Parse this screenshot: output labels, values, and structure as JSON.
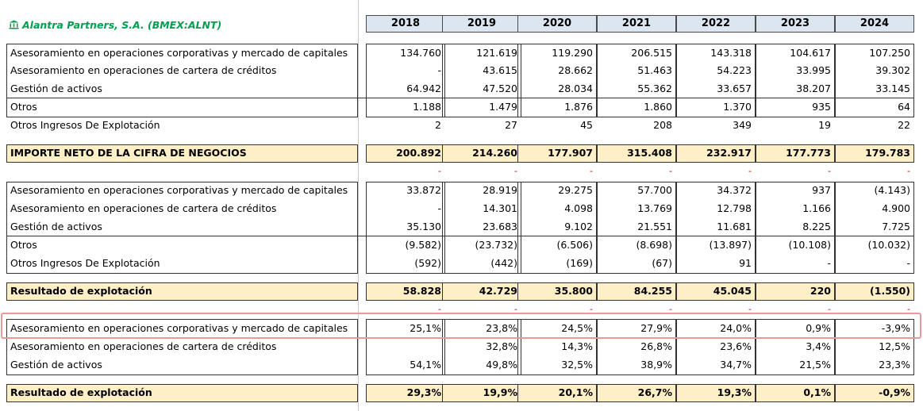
{
  "company": {
    "name": "Alantra Partners, S.A. (BMEX:ALNT)",
    "icon": "bank-icon",
    "color": "#00a050"
  },
  "years": [
    "2018",
    "2019",
    "2020",
    "2021",
    "2022",
    "2023",
    "2024"
  ],
  "revenue_rows": [
    {
      "label": "Asesoramiento en operaciones corporativas y mercado de capitales",
      "values": [
        "134.760",
        "121.619",
        "119.290",
        "206.515",
        "143.318",
        "104.617",
        "107.250"
      ]
    },
    {
      "label": "Asesoramiento en operaciones de cartera de créditos",
      "values": [
        "-",
        "43.615",
        "28.662",
        "51.463",
        "54.223",
        "33.995",
        "39.302"
      ]
    },
    {
      "label": "Gestión de activos",
      "values": [
        "64.942",
        "47.520",
        "28.034",
        "55.362",
        "33.657",
        "38.207",
        "33.145"
      ]
    },
    {
      "label": "Otros",
      "values": [
        "1.188",
        "1.479",
        "1.876",
        "1.860",
        "1.370",
        "935",
        "64"
      ]
    },
    {
      "label": "Otros Ingresos De Explotación",
      "values": [
        "2",
        "27",
        "45",
        "208",
        "349",
        "19",
        "22"
      ]
    }
  ],
  "revenue_total": {
    "label": "IMPORTE NETO DE LA CIFRA DE NEGOCIOS",
    "values": [
      "200.892",
      "214.260",
      "177.907",
      "315.408",
      "232.917",
      "177.773",
      "179.783"
    ]
  },
  "ebit_rows": [
    {
      "label": "Asesoramiento en operaciones corporativas y mercado de capitales",
      "values": [
        "33.872",
        "28.919",
        "29.275",
        "57.700",
        "34.372",
        "937",
        "(4.143)"
      ]
    },
    {
      "label": "Asesoramiento en operaciones de cartera de créditos",
      "values": [
        "-",
        "14.301",
        "4.098",
        "13.769",
        "12.798",
        "1.166",
        "4.900"
      ]
    },
    {
      "label": "Gestión de activos",
      "values": [
        "35.130",
        "23.683",
        "9.102",
        "21.551",
        "11.681",
        "8.225",
        "7.725"
      ]
    },
    {
      "label": "Otros",
      "values": [
        "(9.582)",
        "(23.732)",
        "(6.506)",
        "(8.698)",
        "(13.897)",
        "(10.108)",
        "(10.032)"
      ]
    },
    {
      "label": "Otros Ingresos De Explotación",
      "values": [
        "(592)",
        "(442)",
        "(169)",
        "(67)",
        "91",
        "-",
        "-"
      ]
    }
  ],
  "ebit_total": {
    "label": "Resultado de explotación",
    "values": [
      "58.828",
      "42.729",
      "35.800",
      "84.255",
      "45.045",
      "220",
      "(1.550)"
    ]
  },
  "margin_rows": [
    {
      "label": "Asesoramiento en operaciones corporativas y mercado de capitales",
      "values": [
        "25,1%",
        "23,8%",
        "24,5%",
        "27,9%",
        "24,0%",
        "0,9%",
        "-3,9%"
      ]
    },
    {
      "label": "Asesoramiento en operaciones de cartera de créditos",
      "values": [
        "",
        "32,8%",
        "14,3%",
        "26,8%",
        "23,6%",
        "3,4%",
        "12,5%"
      ]
    },
    {
      "label": "Gestión de activos",
      "values": [
        "54,1%",
        "49,8%",
        "32,5%",
        "38,9%",
        "34,7%",
        "21,5%",
        "23,3%"
      ]
    }
  ],
  "margin_total": {
    "label": "Resultado de explotación",
    "values": [
      "29,3%",
      "19,9%",
      "20,1%",
      "26,7%",
      "19,3%",
      "0,1%",
      "-0,9%"
    ]
  },
  "separator_dash": "-",
  "colors": {
    "header_bg": "#dce6f1",
    "total_bg": "#ffefc6",
    "highlight": "#e89a9a"
  }
}
